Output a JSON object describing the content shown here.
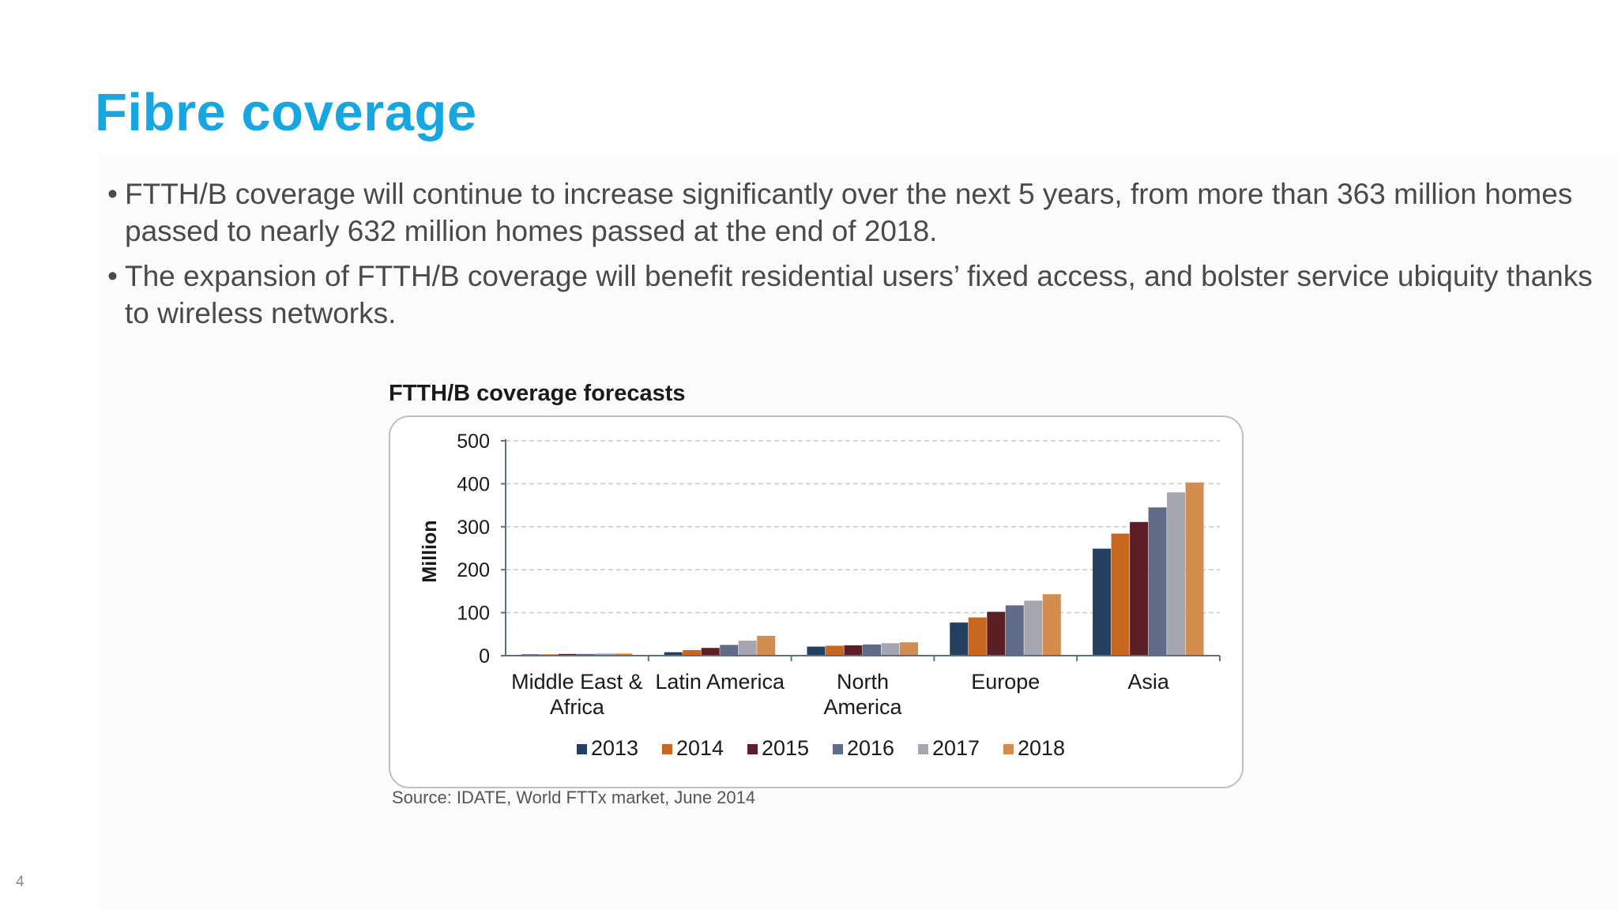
{
  "slide": {
    "title": "Fibre coverage",
    "page_number": "4",
    "bullet_mark": "•",
    "bullets": [
      "FTTH/B coverage will continue to increase significantly over the next 5 years, from more than 363 million homes passed to nearly 632 million homes passed at the end of 2018.",
      "The expansion of FTTH/B coverage will benefit residential users’ fixed access, and bolster service ubiquity thanks to wireless networks."
    ],
    "source": "Source: IDATE, World FTTx market, June 2014"
  },
  "chart_data": {
    "type": "bar",
    "title": "FTTH/B coverage forecasts",
    "xlabel": "",
    "ylabel": "Million",
    "ylim": [
      0,
      500
    ],
    "yticks": [
      0,
      100,
      200,
      300,
      400,
      500
    ],
    "grid": true,
    "legend_position": "bottom",
    "categories": [
      [
        "Middle East &",
        "Africa"
      ],
      [
        "Latin America"
      ],
      [
        "North",
        "America"
      ],
      [
        "Europe"
      ],
      [
        "Asia"
      ]
    ],
    "series": [
      {
        "name": "2013",
        "color": "#243f60",
        "values": [
          3,
          8,
          21,
          77,
          249
        ]
      },
      {
        "name": "2014",
        "color": "#c8671f",
        "values": [
          3,
          13,
          23,
          89,
          284
        ]
      },
      {
        "name": "2015",
        "color": "#5c1f26",
        "values": [
          4,
          18,
          24,
          102,
          311
        ]
      },
      {
        "name": "2016",
        "color": "#5f6b87",
        "values": [
          4,
          25,
          26,
          117,
          345
        ]
      },
      {
        "name": "2017",
        "color": "#a5a6b0",
        "values": [
          5,
          35,
          29,
          128,
          380
        ]
      },
      {
        "name": "2018",
        "color": "#d38e4f",
        "values": [
          5,
          46,
          31,
          143,
          403
        ]
      }
    ]
  }
}
